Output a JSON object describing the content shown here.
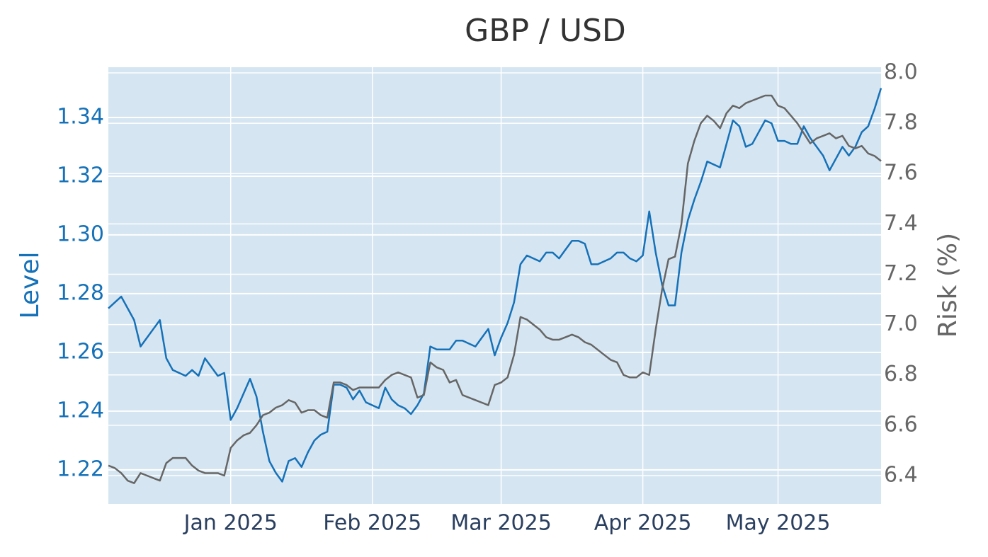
{
  "chart_data": {
    "type": "line",
    "title": "GBP / USD",
    "ylabel": "Level",
    "y2label": "Risk (%)",
    "categories": [
      null,
      null,
      null,
      null,
      null,
      null,
      null,
      null,
      null,
      null,
      null,
      null,
      null,
      null,
      null,
      null,
      null,
      null,
      null,
      "Jan 2025",
      null,
      null,
      null,
      null,
      null,
      null,
      null,
      null,
      null,
      null,
      null,
      null,
      null,
      null,
      null,
      null,
      null,
      null,
      null,
      null,
      null,
      "Feb 2025",
      null,
      null,
      null,
      null,
      null,
      null,
      null,
      null,
      null,
      null,
      null,
      null,
      null,
      null,
      null,
      null,
      null,
      null,
      null,
      "Mar 2025",
      null,
      null,
      null,
      null,
      null,
      null,
      null,
      null,
      null,
      null,
      null,
      null,
      null,
      null,
      null,
      null,
      null,
      null,
      null,
      null,
      null,
      "Apr 2025",
      null,
      null,
      null,
      null,
      null,
      null,
      null,
      null,
      null,
      null,
      null,
      null,
      null,
      null,
      null,
      null,
      null,
      null,
      null,
      null,
      "May 2025",
      null,
      null,
      null,
      null,
      null,
      null,
      null,
      null,
      null,
      null,
      null,
      null,
      null,
      null,
      null,
      null
    ],
    "series": [
      {
        "color": "#1571b8",
        "axis": "y",
        "values": [
          1.275,
          1.277,
          1.279,
          1.275,
          1.271,
          1.262,
          1.265,
          1.268,
          1.271,
          1.258,
          1.254,
          1.253,
          1.252,
          1.254,
          1.252,
          1.258,
          1.255,
          1.252,
          1.253,
          1.237,
          1.241,
          1.246,
          1.251,
          1.245,
          1.233,
          1.223,
          1.219,
          1.216,
          1.223,
          1.224,
          1.221,
          1.226,
          1.23,
          1.232,
          1.233,
          1.249,
          1.249,
          1.248,
          1.244,
          1.247,
          1.243,
          1.242,
          1.241,
          1.248,
          1.244,
          1.242,
          1.241,
          1.239,
          1.242,
          1.246,
          1.262,
          1.261,
          1.261,
          1.261,
          1.264,
          1.264,
          1.263,
          1.262,
          1.265,
          1.268,
          1.259,
          1.265,
          1.27,
          1.277,
          1.29,
          1.293,
          1.292,
          1.291,
          1.294,
          1.294,
          1.292,
          1.295,
          1.298,
          1.298,
          1.297,
          1.29,
          1.29,
          1.291,
          1.292,
          1.294,
          1.294,
          1.292,
          1.291,
          1.293,
          1.308,
          1.294,
          1.283,
          1.276,
          1.276,
          1.294,
          1.305,
          1.312,
          1.318,
          1.325,
          1.324,
          1.323,
          1.331,
          1.339,
          1.337,
          1.33,
          1.331,
          1.335,
          1.339,
          1.338,
          1.332,
          1.332,
          1.331,
          1.331,
          1.337,
          1.333,
          1.33,
          1.327,
          1.322,
          1.326,
          1.33,
          1.327,
          1.33,
          1.335,
          1.337,
          1.343,
          1.35
        ]
      },
      {
        "color": "#666666",
        "axis": "y2",
        "values": [
          6.44,
          6.43,
          6.41,
          6.38,
          6.37,
          6.41,
          6.4,
          6.39,
          6.38,
          6.45,
          6.47,
          6.47,
          6.47,
          6.44,
          6.42,
          6.41,
          6.41,
          6.41,
          6.4,
          6.51,
          6.54,
          6.56,
          6.57,
          6.6,
          6.64,
          6.65,
          6.67,
          6.68,
          6.7,
          6.69,
          6.65,
          6.66,
          6.66,
          6.64,
          6.63,
          6.77,
          6.77,
          6.76,
          6.74,
          6.75,
          6.75,
          6.75,
          6.75,
          6.78,
          6.8,
          6.81,
          6.8,
          6.79,
          6.71,
          6.72,
          6.85,
          6.83,
          6.82,
          6.77,
          6.78,
          6.72,
          6.71,
          6.7,
          6.69,
          6.68,
          6.76,
          6.77,
          6.79,
          6.88,
          7.03,
          7.02,
          7.0,
          6.98,
          6.95,
          6.94,
          6.94,
          6.95,
          6.96,
          6.95,
          6.93,
          6.92,
          6.9,
          6.88,
          6.86,
          6.85,
          6.8,
          6.79,
          6.79,
          6.81,
          6.8,
          6.98,
          7.14,
          7.26,
          7.27,
          7.4,
          7.64,
          7.73,
          7.8,
          7.83,
          7.81,
          7.78,
          7.84,
          7.87,
          7.86,
          7.88,
          7.89,
          7.9,
          7.91,
          7.91,
          7.87,
          7.86,
          7.83,
          7.8,
          7.76,
          7.72,
          7.74,
          7.75,
          7.76,
          7.74,
          7.75,
          7.71,
          7.7,
          7.71,
          7.68,
          7.67,
          7.65
        ]
      }
    ],
    "ylim": [
      1.2084,
      1.3571
    ],
    "yticks": [
      {
        "value": 1.22,
        "label": "1.22"
      },
      {
        "value": 1.24,
        "label": "1.24"
      },
      {
        "value": 1.26,
        "label": "1.26"
      },
      {
        "value": 1.28,
        "label": "1.28"
      },
      {
        "value": 1.3,
        "label": "1.30"
      },
      {
        "value": 1.32,
        "label": "1.32"
      },
      {
        "value": 1.34,
        "label": "1.34"
      }
    ],
    "y2lim": [
      6.2875,
      8.0225
    ],
    "y2ticks": [
      {
        "value": 6.4,
        "label": "6.4"
      },
      {
        "value": 6.6,
        "label": "6.6"
      },
      {
        "value": 6.8,
        "label": "6.8"
      },
      {
        "value": 7.0,
        "label": "7.0"
      },
      {
        "value": 7.2,
        "label": "7.2"
      },
      {
        "value": 7.4,
        "label": "7.4"
      },
      {
        "value": 7.6,
        "label": "7.6"
      },
      {
        "value": 7.8,
        "label": "7.8"
      },
      {
        "value": 8.0,
        "label": "8.0"
      }
    ],
    "grid": true,
    "plot_background": "#d5e5f1",
    "ytick_color": "#1571b8",
    "y2tick_color": "#666666"
  }
}
